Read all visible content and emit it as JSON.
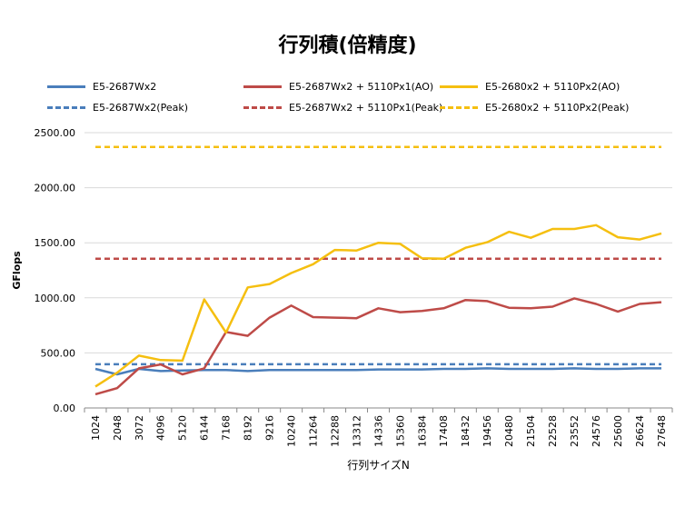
{
  "chart_data": {
    "type": "line",
    "title": "行列積(倍精度)",
    "xlabel": "行列サイズN",
    "ylabel": "GFlops",
    "ylim": [
      0,
      2500
    ],
    "yticks": [
      "0.00",
      "500.00",
      "1000.00",
      "1500.00",
      "2000.00",
      "2500.00"
    ],
    "categories": [
      "1024",
      "2048",
      "3072",
      "4096",
      "5120",
      "6144",
      "7168",
      "8192",
      "9216",
      "10240",
      "11264",
      "12288",
      "13312",
      "14336",
      "15360",
      "16384",
      "17408",
      "18432",
      "19456",
      "20480",
      "21504",
      "22528",
      "23552",
      "24576",
      "25600",
      "26624",
      "27648"
    ],
    "grid": true,
    "legend_position": "top",
    "series": [
      {
        "name": "E5-2687Wx2",
        "color": "#4a7ebb",
        "style": "solid",
        "values": [
          355,
          305,
          355,
          335,
          340,
          345,
          345,
          335,
          345,
          345,
          345,
          345,
          345,
          350,
          350,
          350,
          355,
          355,
          360,
          355,
          355,
          355,
          360,
          355,
          355,
          360,
          360
        ]
      },
      {
        "name": "E5-2687Wx2 + 5110Px1(AO)",
        "color": "#be4b48",
        "style": "solid",
        "values": [
          125,
          180,
          360,
          395,
          305,
          360,
          690,
          655,
          820,
          930,
          825,
          820,
          815,
          905,
          870,
          880,
          905,
          980,
          970,
          910,
          905,
          920,
          995,
          945,
          875,
          945,
          960
        ]
      },
      {
        "name": "E5-2680x2 + 5110Px2(AO)",
        "color": "#f5bf10",
        "style": "solid",
        "values": [
          195,
          320,
          475,
          435,
          430,
          985,
          685,
          1095,
          1125,
          1225,
          1305,
          1435,
          1430,
          1500,
          1490,
          1360,
          1355,
          1455,
          1505,
          1600,
          1545,
          1625,
          1625,
          1660,
          1550,
          1530,
          1585
        ]
      },
      {
        "name": "E5-2687Wx2(Peak)",
        "color": "#4a7ebb",
        "style": "dashed",
        "values": [
          397,
          397,
          397,
          397,
          397,
          397,
          397,
          397,
          397,
          397,
          397,
          397,
          397,
          397,
          397,
          397,
          397,
          397,
          397,
          397,
          397,
          397,
          397,
          397,
          397,
          397,
          397
        ]
      },
      {
        "name": "E5-2687Wx2 + 5110Px1(Peak)",
        "color": "#be4b48",
        "style": "dashed",
        "values": [
          1355,
          1355,
          1355,
          1355,
          1355,
          1355,
          1355,
          1355,
          1355,
          1355,
          1355,
          1355,
          1355,
          1355,
          1355,
          1355,
          1355,
          1355,
          1355,
          1355,
          1355,
          1355,
          1355,
          1355,
          1355,
          1355,
          1355
        ]
      },
      {
        "name": "E5-2680x2 + 5110Px2(Peak)",
        "color": "#f5bf10",
        "style": "dashed",
        "values": [
          2370,
          2370,
          2370,
          2370,
          2370,
          2370,
          2370,
          2370,
          2370,
          2370,
          2370,
          2370,
          2370,
          2370,
          2370,
          2370,
          2370,
          2370,
          2370,
          2370,
          2370,
          2370,
          2370,
          2370,
          2370,
          2370,
          2370
        ]
      }
    ]
  }
}
